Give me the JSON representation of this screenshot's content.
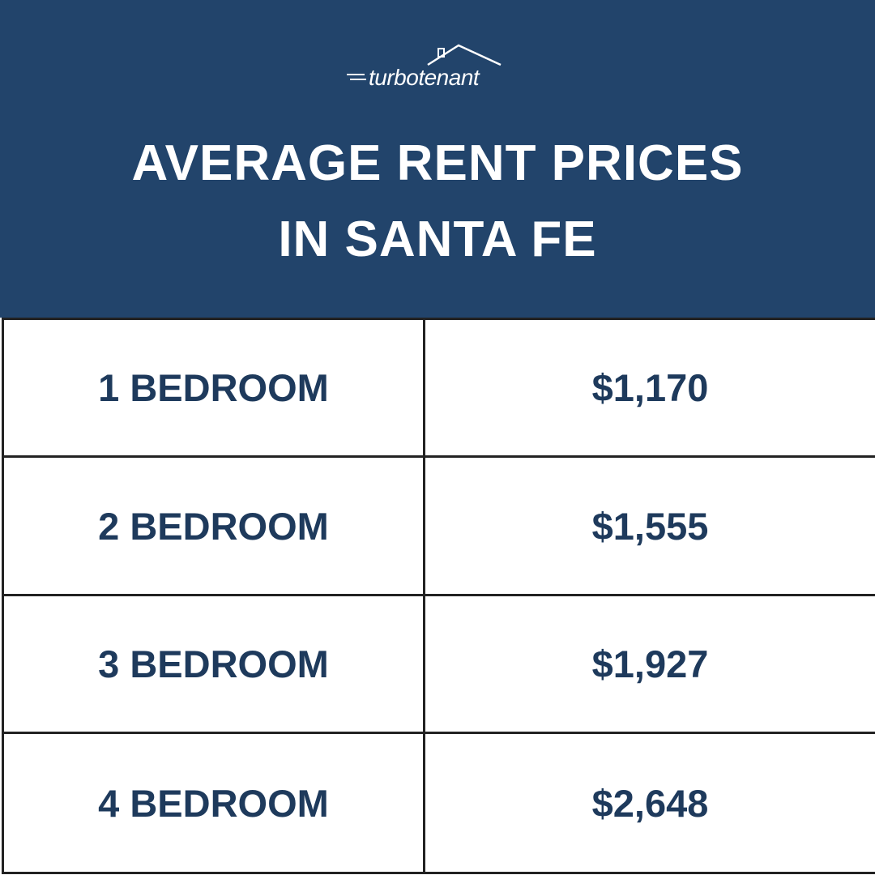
{
  "logo": {
    "text": "turbotenant"
  },
  "header": {
    "title_lines": [
      "AVERAGE RENT PRICES",
      "IN SANTA FE"
    ]
  },
  "table": {
    "rows": [
      [
        "1 BEDROOM",
        "$1,170"
      ],
      [
        "2 BEDROOM",
        "$1,555"
      ],
      [
        "3 BEDROOM",
        "$1,927"
      ],
      [
        "4 BEDROOM",
        "$2,648"
      ]
    ]
  }
}
